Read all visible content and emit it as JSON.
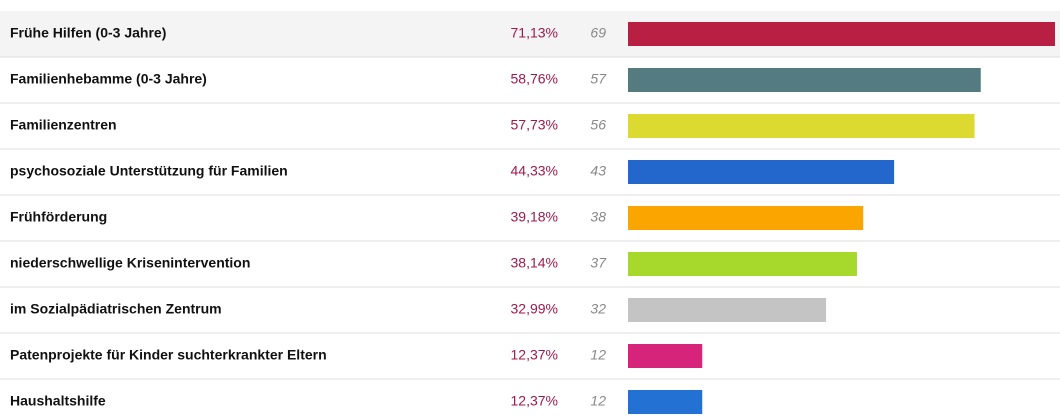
{
  "chart_data": {
    "type": "bar",
    "orientation": "horizontal",
    "categories": [
      "Frühe Hilfen (0-3 Jahre)",
      "Familienhebamme (0-3 Jahre)",
      "Familienzentren",
      "psychosoziale Unterstützung für Familien",
      "Frühförderung",
      "niederschwellige Krisenintervention",
      "im Sozialpädiatrischen Zentrum",
      "Patenprojekte für Kinder suchterkrankter Eltern",
      "Haushaltshilfe"
    ],
    "values": [
      71.13,
      58.76,
      57.73,
      44.33,
      39.18,
      38.14,
      32.99,
      12.37,
      12.37
    ],
    "value_labels": [
      "71,13%",
      "58,76%",
      "57,73%",
      "44,33%",
      "39,18%",
      "38,14%",
      "32,99%",
      "12,37%",
      "12,37%"
    ],
    "counts": [
      69,
      57,
      56,
      43,
      38,
      37,
      32,
      12,
      12
    ],
    "colors": [
      "#b91f43",
      "#537b80",
      "#dcd930",
      "#2367cc",
      "#fba500",
      "#a6d92b",
      "#c4c4c4",
      "#d6247a",
      "#2471d4"
    ]
  }
}
